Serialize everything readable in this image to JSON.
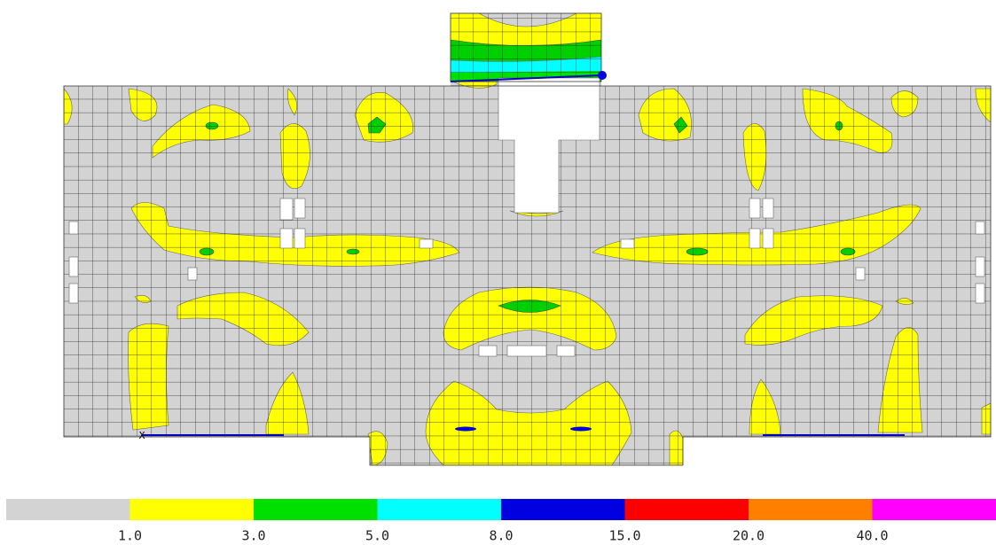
{
  "plot": {
    "axis_label": "X"
  },
  "legend": {
    "colors": [
      "#d3d3d3",
      "#ffff00",
      "#00e000",
      "#00ffff",
      "#0000e0",
      "#ff0000",
      "#ff8000",
      "#ff00ff"
    ],
    "labels": [
      "1.0",
      "3.0",
      "5.0",
      "8.0",
      "15.0",
      "20.0",
      "40.0"
    ]
  }
}
